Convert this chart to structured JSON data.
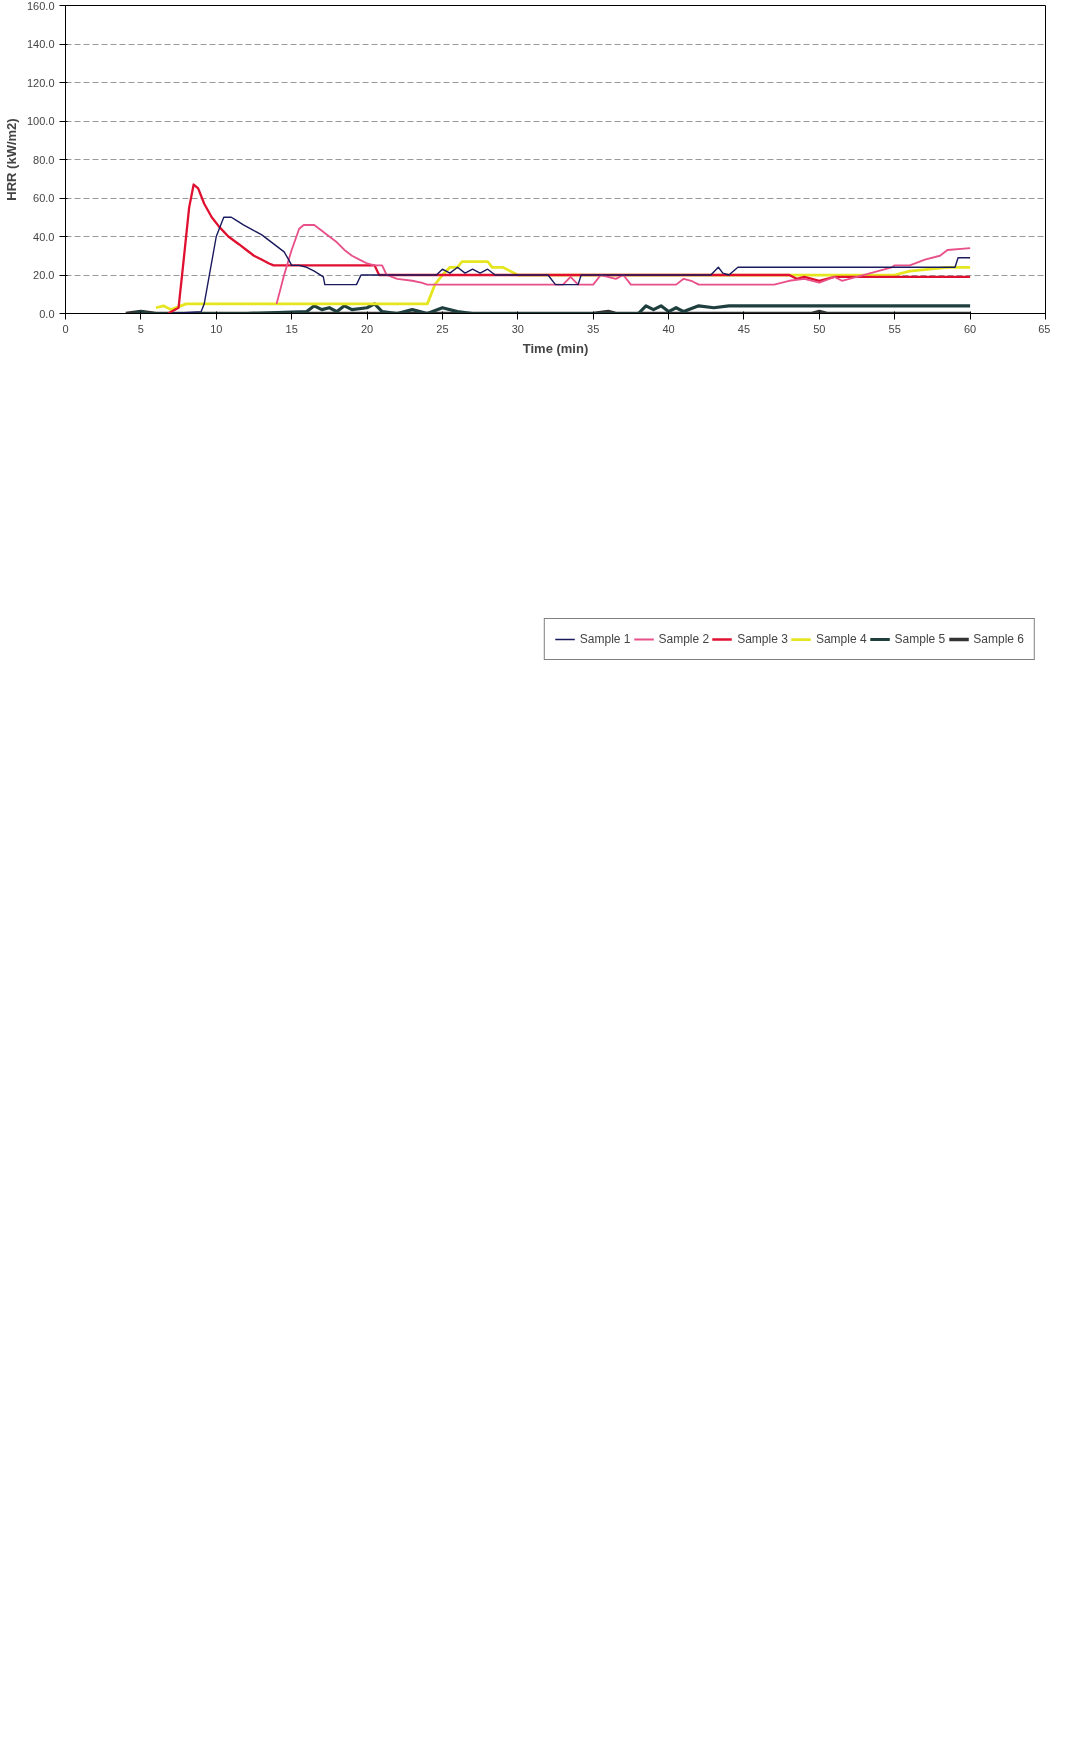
{
  "chart_data": {
    "type": "line",
    "xlabel": "Time (min)",
    "ylabel": "HRR (kW/m2)",
    "xlim": [
      0,
      65
    ],
    "xticks": [
      0,
      5,
      10,
      15,
      20,
      25,
      30,
      35,
      40,
      45,
      50,
      55,
      60,
      65
    ],
    "ylim": [
      0,
      160
    ],
    "yticks": [
      {
        "value": 0,
        "label": "0.0"
      },
      {
        "value": 20,
        "label": "20.0"
      },
      {
        "value": 40,
        "label": "40.0"
      },
      {
        "value": 60,
        "label": "60.0"
      },
      {
        "value": 80,
        "label": "80.0"
      },
      {
        "value": 100,
        "label": "100.0"
      },
      {
        "value": 120,
        "label": "120.0"
      },
      {
        "value": 140,
        "label": "140.0"
      },
      {
        "value": 160,
        "label": "160.0"
      }
    ],
    "grid": "y",
    "legend": "bottom",
    "marker": "none",
    "line_style": "solid",
    "series": [
      {
        "name": "Sample 1",
        "color": "#1a1a5e",
        "x": [
          7,
          9,
          9.2,
          10,
          10.4,
          10.5,
          11,
          11.2,
          11.8,
          12.5,
          13,
          13.5,
          14,
          14.5,
          14.8,
          15,
          15.5,
          16,
          16.5,
          17.1,
          17.2,
          19.3,
          19.6,
          24.6,
          25,
          25.5,
          26,
          26.5,
          27,
          27.5,
          28,
          28.5,
          32,
          32.5,
          34,
          34.2,
          42.8,
          43.3,
          43.6,
          44,
          44.6,
          59,
          59.2,
          60
        ],
        "values": [
          0,
          1,
          5,
          40,
          48,
          50,
          50,
          49,
          46,
          43,
          41,
          38,
          35,
          32,
          28,
          25,
          25,
          24,
          22,
          19,
          15,
          15,
          20,
          20,
          23,
          21,
          24,
          21,
          23,
          21,
          23,
          20,
          20,
          15,
          15,
          20,
          20,
          24,
          21,
          20,
          24,
          24,
          29,
          29
        ]
      },
      {
        "name": "Sample 2",
        "color": "#e8508a",
        "x": [
          14,
          14.5,
          15,
          15.5,
          15.8,
          16.5,
          17,
          17.5,
          18,
          18.5,
          19,
          19.5,
          20,
          20.5,
          21,
          21.3,
          22,
          23,
          23.6,
          24,
          33,
          33.5,
          34,
          35,
          35.5,
          36.5,
          37,
          37.5,
          40.5,
          41,
          41.5,
          42,
          47,
          48,
          49,
          50,
          51,
          51.5,
          54.8,
          55,
          56,
          57,
          58,
          58.5,
          60
        ],
        "values": [
          5,
          20,
          33,
          44,
          46,
          46,
          43,
          40,
          37,
          33,
          30,
          28,
          26,
          25,
          25,
          20,
          18,
          17,
          16,
          15,
          15,
          19,
          15,
          15,
          20,
          18,
          20,
          15,
          15,
          18,
          17,
          15,
          15,
          17,
          18,
          16,
          19,
          17,
          24,
          25,
          25,
          28,
          30,
          33,
          34
        ]
      },
      {
        "name": "Sample 3",
        "color": "#e01030",
        "x": [
          6.8,
          7.5,
          7.8,
          8.2,
          8.5,
          8.8,
          9.2,
          9.7,
          10.2,
          10.8,
          11.5,
          12,
          12.5,
          13,
          13.5,
          13.8,
          20.5,
          20.8,
          48,
          48.5,
          49,
          50,
          51,
          55.3,
          60
        ],
        "values": [
          0,
          3,
          25,
          55,
          67,
          65,
          57,
          50,
          45,
          40,
          36,
          33,
          30,
          28,
          26,
          25,
          25,
          20,
          20,
          18,
          19,
          17,
          19,
          19,
          19
        ]
      },
      {
        "name": "Sample 4",
        "color": "#e6e620",
        "x": [
          6,
          6.5,
          7,
          8,
          24,
          24.5,
          25,
          25.5,
          26,
          26.3,
          28,
          28.3,
          29,
          29.5,
          30,
          55,
          56,
          58.5,
          60
        ],
        "values": [
          3,
          4,
          2,
          5,
          5,
          15,
          20,
          24,
          24,
          27,
          27,
          24,
          24,
          22,
          20,
          20,
          22,
          24,
          24
        ]
      },
      {
        "name": "Sample 5",
        "color": "#1f3f3f",
        "x": [
          4.5,
          5,
          5.5,
          12,
          16,
          16.5,
          17,
          17.5,
          18,
          18.5,
          19,
          20,
          20.5,
          21,
          22,
          23,
          24,
          25,
          26,
          27,
          38,
          38.5,
          39,
          39.5,
          40,
          40.5,
          41,
          42,
          43,
          44,
          60
        ],
        "values": [
          0,
          1,
          0,
          0,
          1,
          4,
          2,
          3,
          1,
          4,
          2,
          3,
          5,
          1,
          0,
          2,
          0,
          3,
          1,
          0,
          0,
          4,
          2,
          4,
          1,
          3,
          1,
          4,
          3,
          4,
          4
        ]
      },
      {
        "name": "Sample 6",
        "color": "#333333",
        "x": [
          4,
          5,
          6,
          35,
          36,
          36.5,
          49.5,
          50,
          50.5,
          60
        ],
        "values": [
          0,
          1,
          0,
          0,
          1,
          0,
          0,
          1,
          0,
          0
        ]
      }
    ]
  }
}
